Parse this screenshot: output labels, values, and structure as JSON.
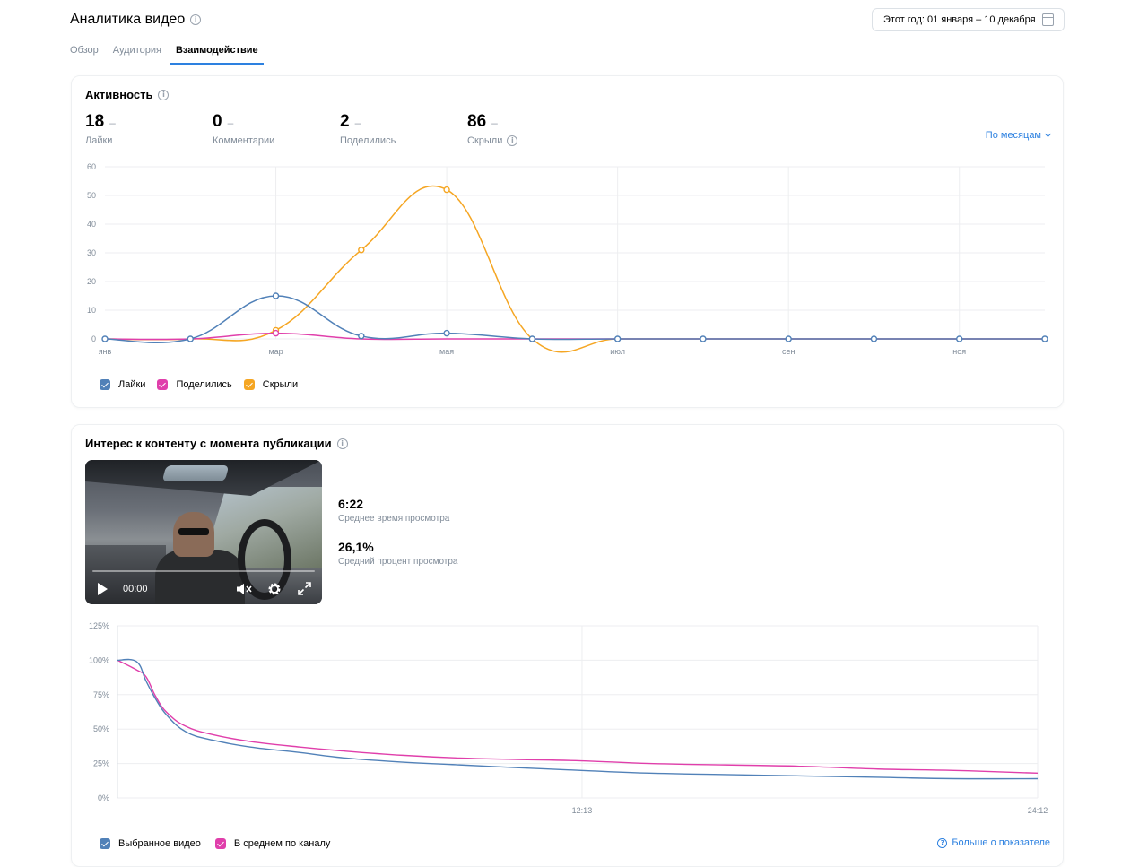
{
  "header": {
    "title": "Аналитика видео",
    "date_range": "Этот год: 01 января – 10 декабря"
  },
  "tabs": [
    {
      "label": "Обзор",
      "active": false
    },
    {
      "label": "Аудитория",
      "active": false
    },
    {
      "label": "Взаимодействие",
      "active": true
    }
  ],
  "activity": {
    "title": "Активность",
    "metrics": [
      {
        "value": "18",
        "change": "–",
        "label": "Лайки"
      },
      {
        "value": "0",
        "change": "–",
        "label": "Комментарии"
      },
      {
        "value": "2",
        "change": "–",
        "label": "Поделились"
      },
      {
        "value": "86",
        "change": "–",
        "label": "Скрыли"
      }
    ],
    "period_select": "По месяцам",
    "legend": [
      {
        "label": "Лайки",
        "color": "#5181b8"
      },
      {
        "label": "Поделились",
        "color": "#e03fab"
      },
      {
        "label": "Скрыли",
        "color": "#f5a623"
      }
    ]
  },
  "retention": {
    "title": "Интерес к контенту с момента публикации",
    "video_time": "00:00",
    "avg_view_time": "6:22",
    "avg_view_time_label": "Среднее время просмотра",
    "avg_view_percent": "26,1%",
    "avg_view_percent_label": "Средний процент просмотра",
    "legend": [
      {
        "label": "Выбранное видео",
        "color": "#5181b8"
      },
      {
        "label": "В среднем по каналу",
        "color": "#e03fab"
      }
    ],
    "more_link": "Больше о показателе"
  },
  "chart_data": [
    {
      "type": "line",
      "title": "Активность",
      "x_tick_labels": [
        "янв",
        "",
        "мар",
        "",
        "мая",
        "",
        "июл",
        "",
        "сен",
        "",
        "ноя",
        ""
      ],
      "ylim": [
        0,
        60
      ],
      "y_ticks": [
        0,
        10,
        20,
        30,
        40,
        50,
        60
      ],
      "grid": true,
      "legend_position": "bottom-left",
      "series": [
        {
          "name": "Лайки",
          "color": "#5181b8",
          "values": [
            0,
            0,
            15,
            1,
            2,
            0,
            0,
            0,
            0,
            0,
            0,
            0
          ]
        },
        {
          "name": "Поделились",
          "color": "#e03fab",
          "values": [
            0,
            0,
            2,
            0,
            0,
            0,
            0,
            0,
            0,
            0,
            0,
            0
          ]
        },
        {
          "name": "Скрыли",
          "color": "#f5a623",
          "values": [
            0,
            0,
            3,
            31,
            52,
            0,
            0,
            0,
            0,
            0,
            0,
            0
          ]
        }
      ]
    },
    {
      "type": "line",
      "title": "Интерес к контенту с момента публикации",
      "x_tick_labels": [
        "12:13",
        "24:12"
      ],
      "x_ticks_minutes": [
        12.2167,
        24.2
      ],
      "xlim_minutes": [
        0,
        24.2
      ],
      "y_tick_labels": [
        "0%",
        "25%",
        "50%",
        "75%",
        "100%",
        "125%"
      ],
      "ylim": [
        0,
        125
      ],
      "grid": true,
      "legend_position": "bottom-left",
      "series": [
        {
          "name": "Выбранное видео",
          "color": "#5181b8",
          "x": [
            0,
            0.5,
            0.75,
            1.0,
            1.3,
            1.8,
            2.5,
            3.5,
            4.8,
            6.0,
            7.5,
            9.0,
            10.5,
            12.2,
            14.0,
            16.0,
            18.0,
            20.0,
            22.0,
            24.2
          ],
          "y": [
            100,
            99,
            85,
            72,
            60,
            48,
            42,
            37,
            33,
            29,
            26,
            24,
            22,
            20,
            18,
            17,
            16,
            15,
            14,
            14
          ]
        },
        {
          "name": "В среднем по каналу",
          "color": "#e03fab",
          "x": [
            0,
            0.5,
            0.75,
            1.0,
            1.3,
            1.8,
            2.5,
            3.5,
            4.8,
            6.0,
            7.5,
            9.0,
            10.5,
            12.2,
            14.0,
            16.0,
            18.0,
            20.0,
            22.0,
            24.2
          ],
          "y": [
            100,
            93,
            88,
            74,
            62,
            52,
            46,
            41,
            37,
            34,
            31,
            29,
            28,
            27,
            25,
            24,
            23,
            21,
            20,
            18
          ]
        }
      ]
    }
  ]
}
